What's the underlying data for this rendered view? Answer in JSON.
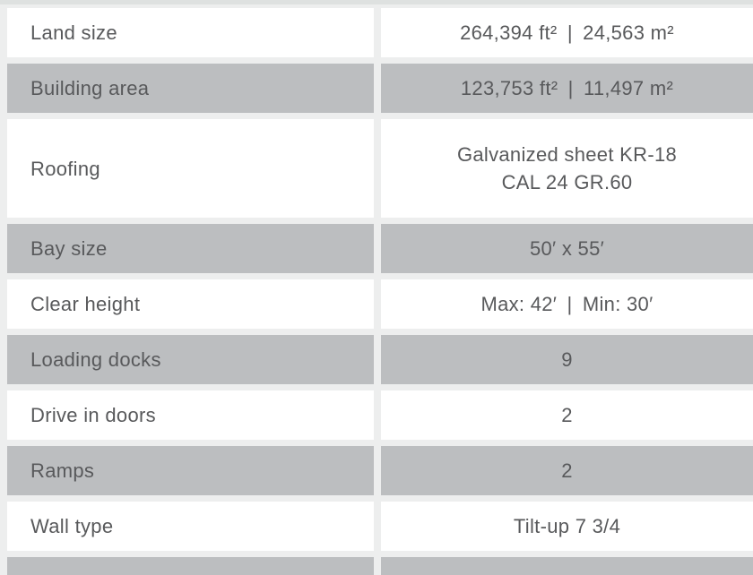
{
  "table": {
    "rows": [
      {
        "label": "Land size",
        "value": "264,394 ft² | 24,563 m²"
      },
      {
        "label": "Building area",
        "value": "123,753 ft² | 11,497 m²"
      },
      {
        "label": "Roofing",
        "value": "Galvanized sheet KR-18\nCAL 24 GR.60"
      },
      {
        "label": "Bay size",
        "value": "50′ x 55′"
      },
      {
        "label": "Clear height",
        "value": "Max: 42′ | Min: 30′"
      },
      {
        "label": "Loading docks",
        "value": "9"
      },
      {
        "label": "Drive in doors",
        "value": "2"
      },
      {
        "label": "Ramps",
        "value": "2"
      },
      {
        "label": "Wall type",
        "value": "Tilt-up 7 3/4"
      }
    ],
    "colors": {
      "row_white": "#ffffff",
      "row_gray": "#bcbec0",
      "text": "#58595b",
      "background": "#edeeee",
      "top_strip": "#dee1e0"
    }
  }
}
